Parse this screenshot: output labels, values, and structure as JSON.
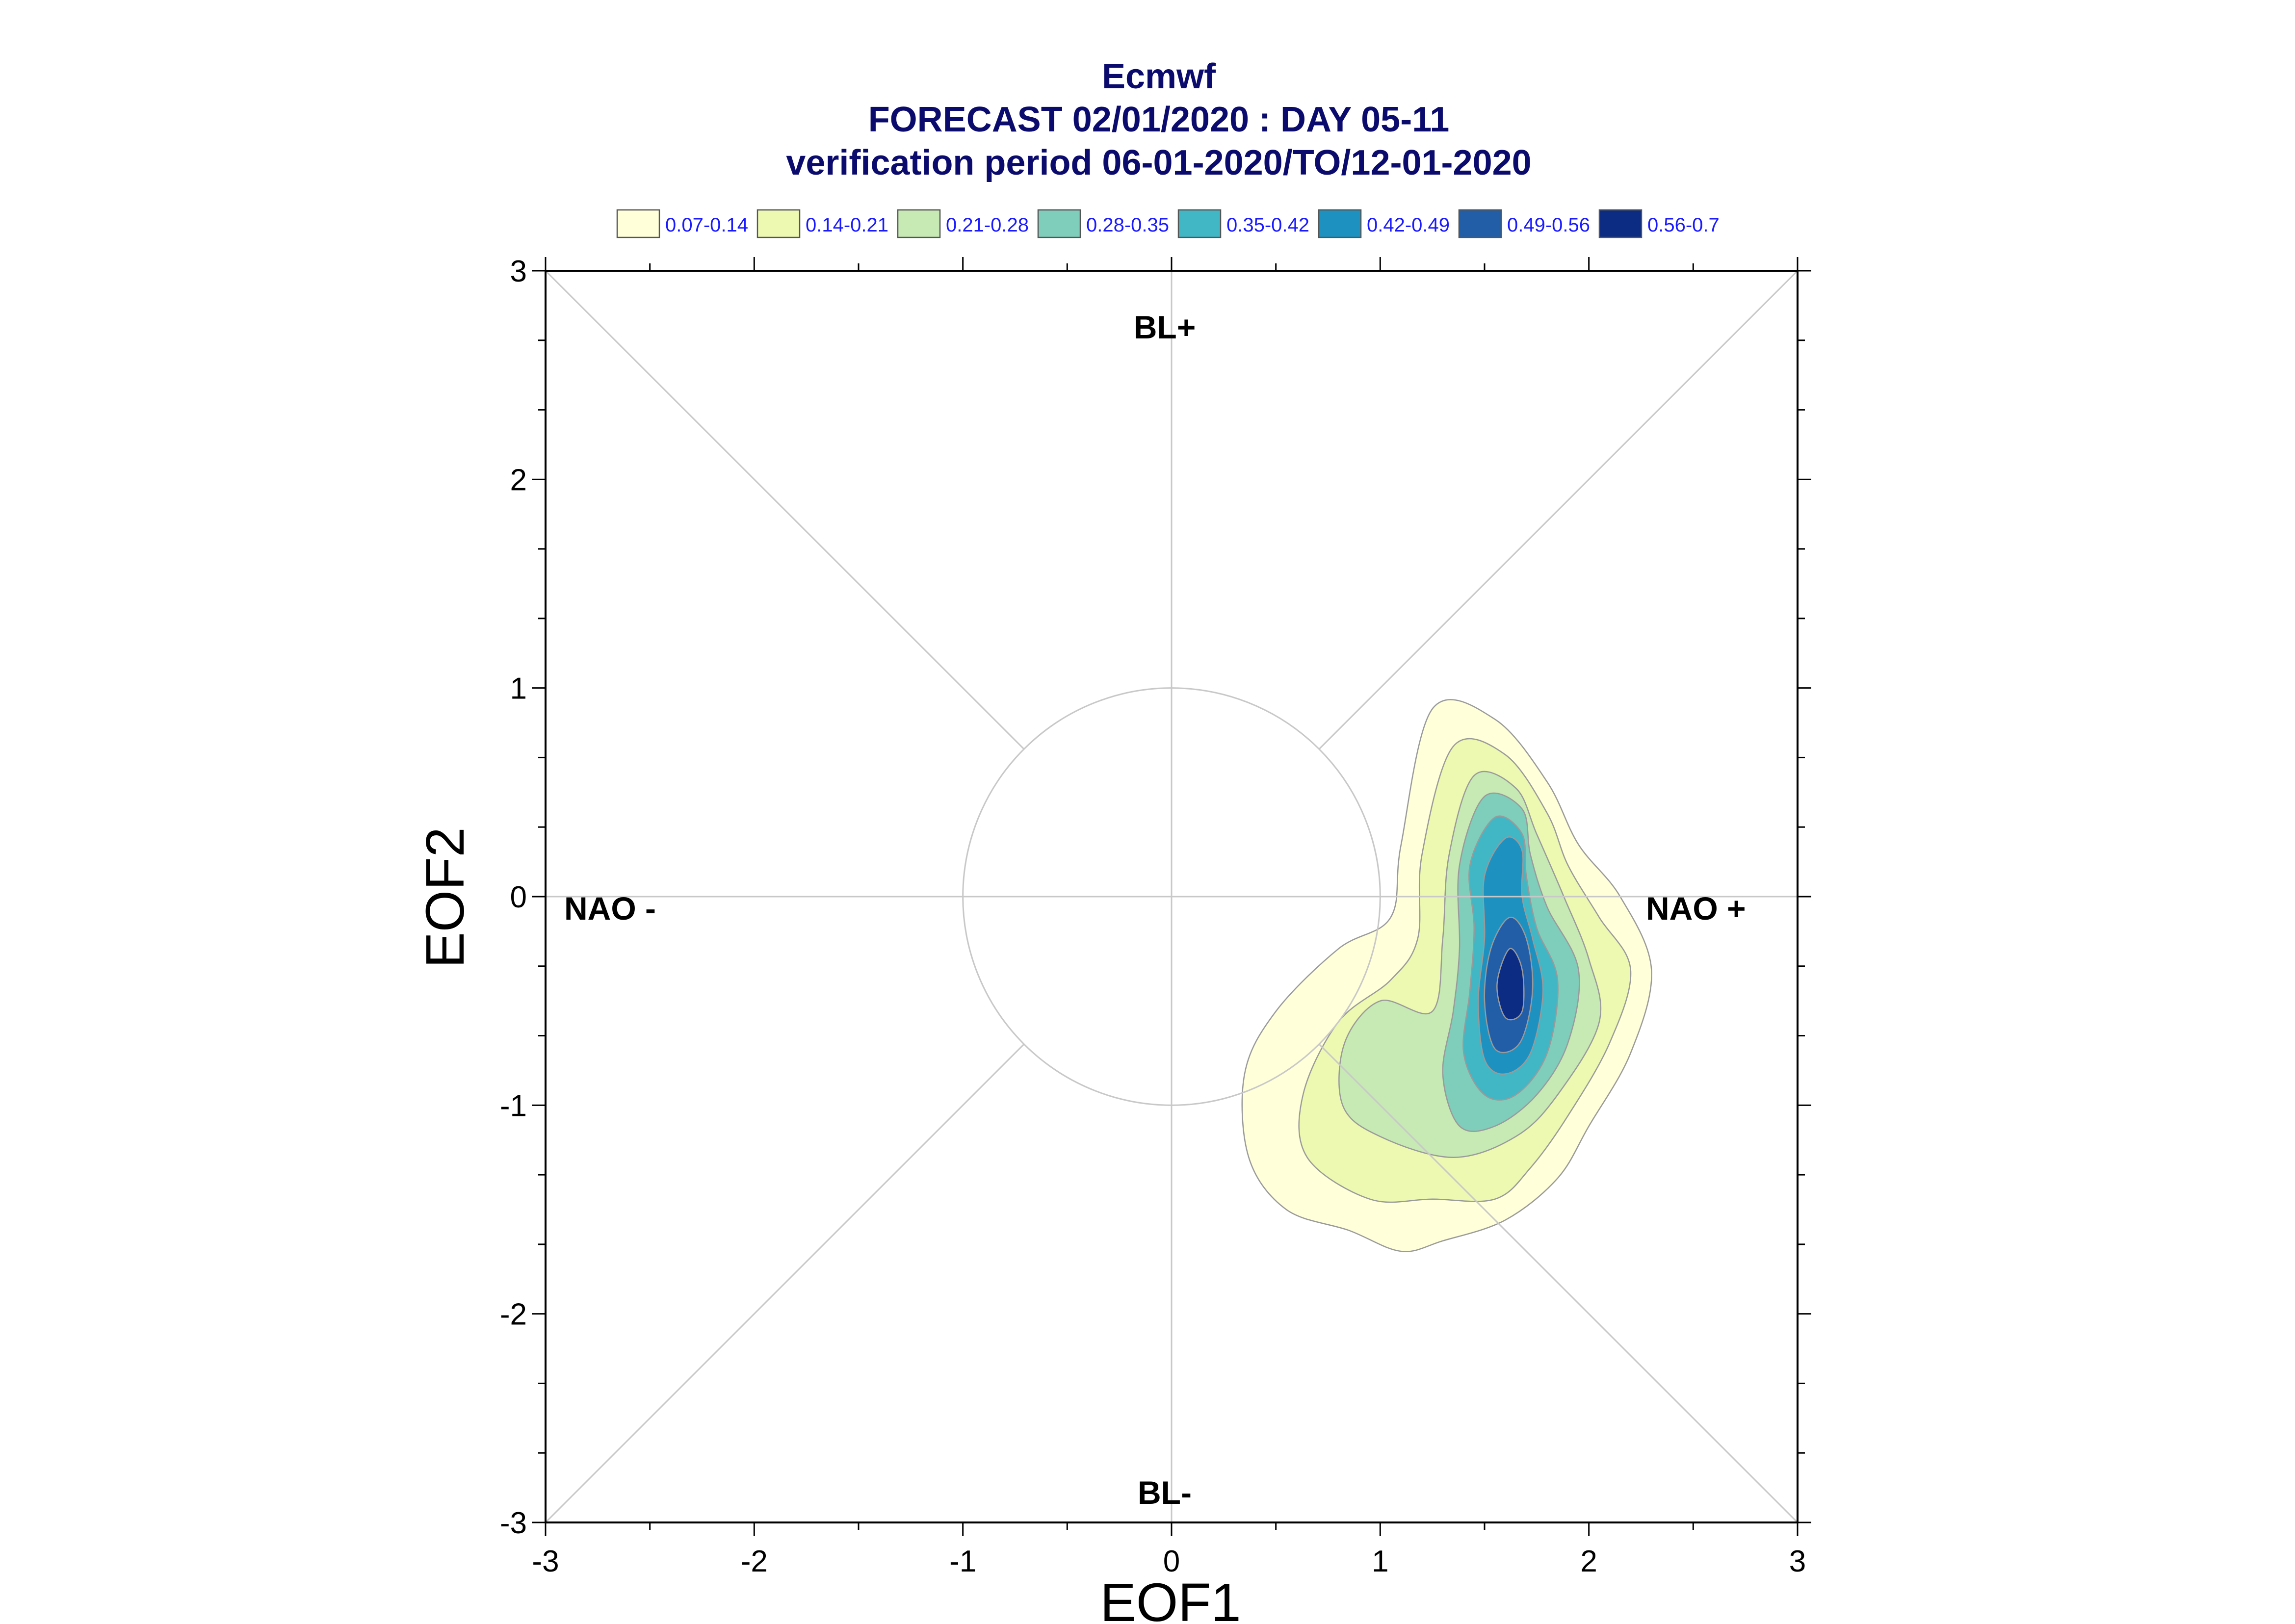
{
  "title": {
    "line1": "Ecmwf",
    "line2": "FORECAST 02/01/2020 : DAY 05-11",
    "line3": "verification period 06-01-2020/TO/12-01-2020"
  },
  "colors": {
    "title": "#0b0b6e",
    "legend_text": "#1a1aff",
    "grid": "#c8c8c8",
    "levels": [
      "#ffffd9",
      "#edf8b1",
      "#c7e9b4",
      "#7fcdbb",
      "#41b6c4",
      "#1d91c0",
      "#225ea8",
      "#0c2c84"
    ]
  },
  "legend": [
    {
      "label": "0.07-0.14"
    },
    {
      "label": "0.14-0.21"
    },
    {
      "label": "0.21-0.28"
    },
    {
      "label": "0.28-0.35"
    },
    {
      "label": "0.35-0.42"
    },
    {
      "label": "0.42-0.49"
    },
    {
      "label": "0.49-0.56"
    },
    {
      "label": "0.56-0.7"
    }
  ],
  "regimes": {
    "top": "BL+",
    "bottom": "BL-",
    "left": "NAO -",
    "right": "NAO +"
  },
  "chart_data": {
    "type": "contour",
    "title": "Ecmwf FORECAST 02/01/2020 : DAY 05-11",
    "subtitle": "verification period 06-01-2020/TO/12-01-2020",
    "xlabel": "EOF1",
    "ylabel": "EOF2",
    "xlim": [
      -3,
      3
    ],
    "ylim": [
      -3,
      3
    ],
    "xticks": [
      -3,
      -2,
      -1,
      0,
      1,
      2,
      3
    ],
    "yticks": [
      -3,
      -2,
      -1,
      0,
      1,
      2,
      3
    ],
    "reference_circle_radius": 1,
    "diagonals": true,
    "levels": [
      "0.07-0.14",
      "0.14-0.21",
      "0.21-0.28",
      "0.28-0.35",
      "0.35-0.42",
      "0.42-0.49",
      "0.49-0.56",
      "0.56-0.7"
    ],
    "density_peak": {
      "x": 1.63,
      "y": -0.4
    },
    "contours": [
      {
        "level": "0.07-0.14",
        "points": [
          [
            1.25,
            0.9
          ],
          [
            1.55,
            0.85
          ],
          [
            1.8,
            0.55
          ],
          [
            1.95,
            0.25
          ],
          [
            2.15,
            0.0
          ],
          [
            2.3,
            -0.35
          ],
          [
            2.2,
            -0.75
          ],
          [
            2.0,
            -1.1
          ],
          [
            1.85,
            -1.35
          ],
          [
            1.6,
            -1.55
          ],
          [
            1.3,
            -1.65
          ],
          [
            1.1,
            -1.7
          ],
          [
            0.85,
            -1.6
          ],
          [
            0.55,
            -1.5
          ],
          [
            0.37,
            -1.25
          ],
          [
            0.35,
            -0.85
          ],
          [
            0.5,
            -0.55
          ],
          [
            0.8,
            -0.25
          ],
          [
            1.05,
            -0.1
          ],
          [
            1.1,
            0.25
          ]
        ]
      },
      {
        "level": "0.14-0.21",
        "points": [
          [
            1.35,
            0.72
          ],
          [
            1.6,
            0.68
          ],
          [
            1.8,
            0.4
          ],
          [
            1.9,
            0.15
          ],
          [
            2.05,
            -0.1
          ],
          [
            2.2,
            -0.35
          ],
          [
            2.1,
            -0.7
          ],
          [
            1.9,
            -1.05
          ],
          [
            1.72,
            -1.3
          ],
          [
            1.55,
            -1.45
          ],
          [
            1.25,
            -1.45
          ],
          [
            0.95,
            -1.45
          ],
          [
            0.65,
            -1.25
          ],
          [
            0.63,
            -0.95
          ],
          [
            0.8,
            -0.6
          ],
          [
            1.05,
            -0.4
          ],
          [
            1.18,
            -0.2
          ],
          [
            1.2,
            0.2
          ]
        ]
      },
      {
        "level": "0.21-0.28",
        "points": [
          [
            1.45,
            0.58
          ],
          [
            1.65,
            0.52
          ],
          [
            1.75,
            0.3
          ],
          [
            1.88,
            0.0
          ],
          [
            2.0,
            -0.3
          ],
          [
            2.05,
            -0.6
          ],
          [
            1.85,
            -0.95
          ],
          [
            1.65,
            -1.15
          ],
          [
            1.35,
            -1.25
          ],
          [
            1.0,
            -1.15
          ],
          [
            0.82,
            -1.0
          ],
          [
            0.83,
            -0.7
          ],
          [
            1.0,
            -0.5
          ],
          [
            1.25,
            -0.55
          ],
          [
            1.3,
            -0.2
          ],
          [
            1.33,
            0.2
          ]
        ]
      },
      {
        "level": "0.28-0.35",
        "points": [
          [
            1.5,
            0.48
          ],
          [
            1.68,
            0.42
          ],
          [
            1.72,
            0.2
          ],
          [
            1.8,
            -0.05
          ],
          [
            1.95,
            -0.35
          ],
          [
            1.9,
            -0.7
          ],
          [
            1.75,
            -0.95
          ],
          [
            1.55,
            -1.1
          ],
          [
            1.38,
            -1.1
          ],
          [
            1.3,
            -0.85
          ],
          [
            1.35,
            -0.55
          ],
          [
            1.38,
            -0.25
          ],
          [
            1.38,
            0.15
          ]
        ]
      },
      {
        "level": "0.35-0.42",
        "points": [
          [
            1.55,
            0.38
          ],
          [
            1.68,
            0.3
          ],
          [
            1.7,
            0.1
          ],
          [
            1.75,
            -0.15
          ],
          [
            1.85,
            -0.4
          ],
          [
            1.8,
            -0.75
          ],
          [
            1.65,
            -0.95
          ],
          [
            1.5,
            -0.95
          ],
          [
            1.4,
            -0.75
          ],
          [
            1.43,
            -0.45
          ],
          [
            1.45,
            -0.15
          ],
          [
            1.43,
            0.15
          ]
        ]
      },
      {
        "level": "0.42-0.49",
        "points": [
          [
            1.6,
            0.28
          ],
          [
            1.68,
            0.22
          ],
          [
            1.68,
            0.0
          ],
          [
            1.73,
            -0.2
          ],
          [
            1.78,
            -0.45
          ],
          [
            1.72,
            -0.75
          ],
          [
            1.6,
            -0.85
          ],
          [
            1.5,
            -0.78
          ],
          [
            1.47,
            -0.5
          ],
          [
            1.5,
            -0.2
          ],
          [
            1.5,
            0.1
          ]
        ]
      },
      {
        "level": "0.49-0.56",
        "points": [
          [
            1.62,
            -0.1
          ],
          [
            1.7,
            -0.2
          ],
          [
            1.73,
            -0.45
          ],
          [
            1.67,
            -0.7
          ],
          [
            1.55,
            -0.73
          ],
          [
            1.5,
            -0.5
          ],
          [
            1.53,
            -0.25
          ]
        ]
      },
      {
        "level": "0.56-0.7",
        "points": [
          [
            1.62,
            -0.25
          ],
          [
            1.68,
            -0.35
          ],
          [
            1.68,
            -0.55
          ],
          [
            1.6,
            -0.58
          ],
          [
            1.56,
            -0.42
          ]
        ]
      }
    ]
  }
}
